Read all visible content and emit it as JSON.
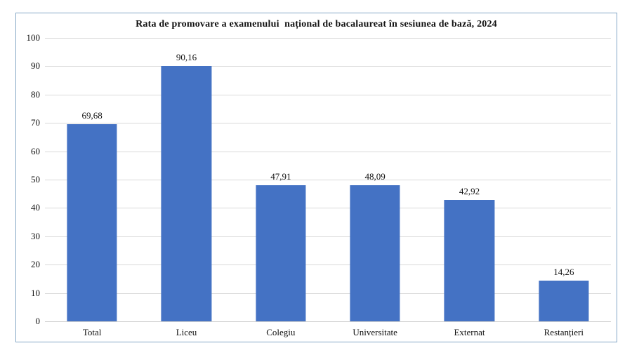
{
  "chart_data": {
    "type": "bar",
    "title": "Rata de promovare a examenului  național de bacalaureat în sesiunea de bază, 2024",
    "categories": [
      "Total",
      "Liceu",
      "Colegiu",
      "Universitate",
      "Externat",
      "Restanțieri"
    ],
    "values": [
      69.68,
      90.16,
      47.91,
      48.09,
      42.92,
      14.26
    ],
    "value_labels": [
      "69,68",
      "90,16",
      "47,91",
      "48,09",
      "42,92",
      "14,26"
    ],
    "xlabel": "",
    "ylabel": "",
    "ylim": [
      0,
      100
    ],
    "ytick_step": 10,
    "grid": true,
    "legend": "none",
    "colors": {
      "bar": "#4472C4",
      "gridline": "#d9d9d9",
      "frame_border": "#84a7c6",
      "text": "#111111",
      "background": "#ffffff"
    }
  }
}
